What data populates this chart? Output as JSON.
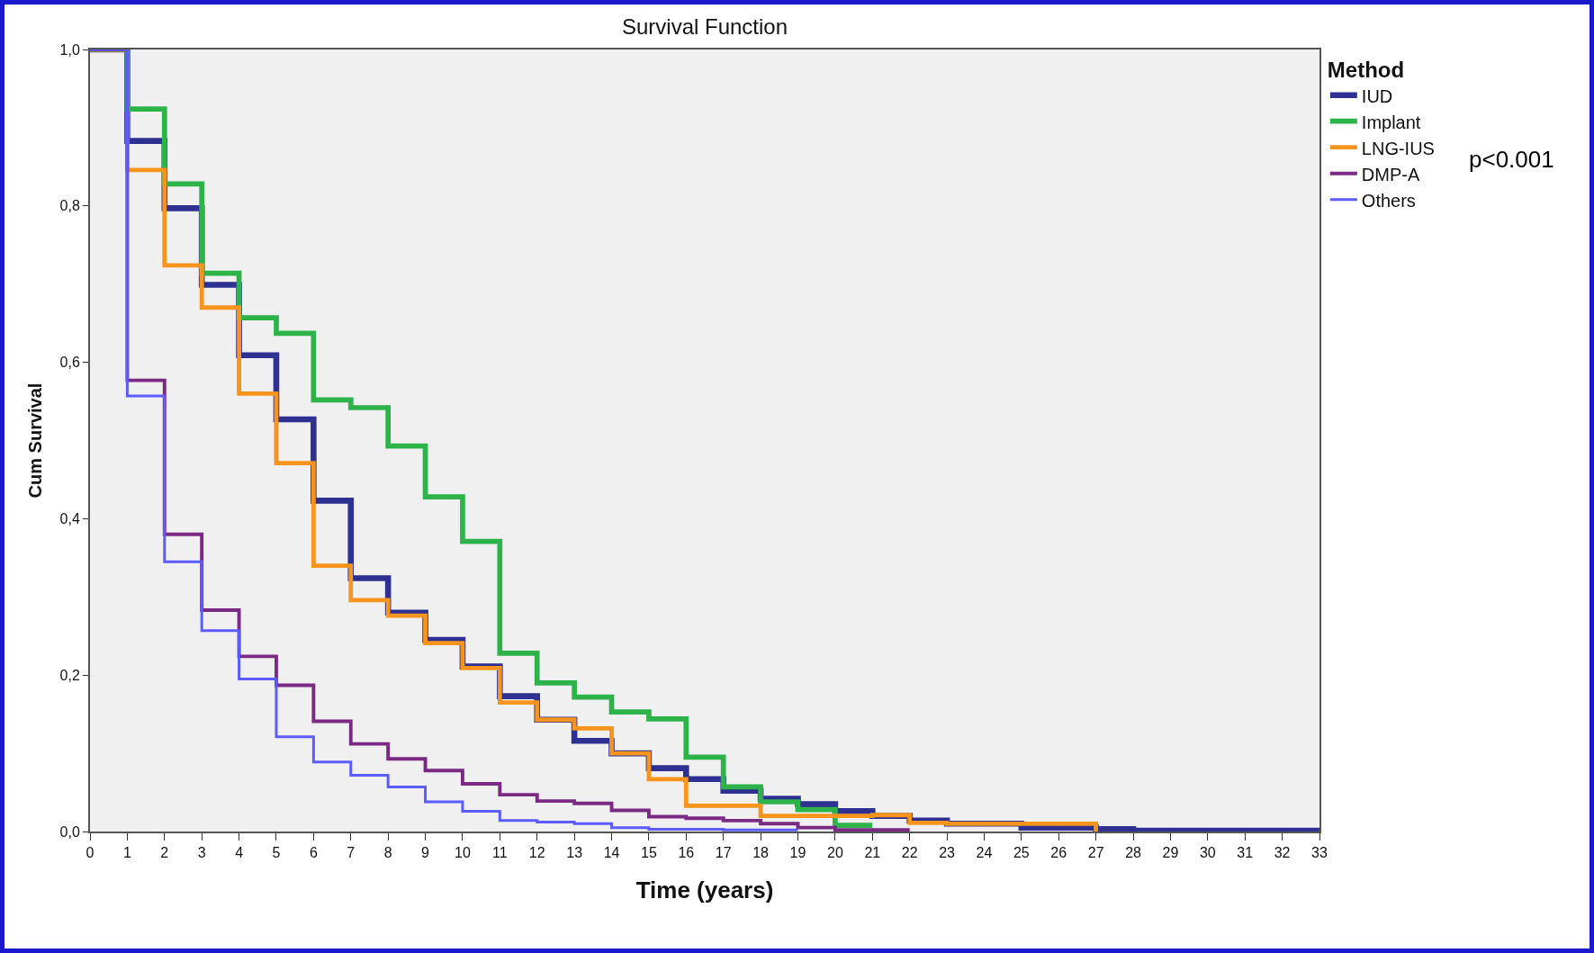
{
  "chart_data": {
    "type": "step",
    "title": "Survival Function",
    "xlabel": "Time (years)",
    "ylabel": "Cum Survival",
    "legend_title": "Method",
    "legend": "top right",
    "grid": false,
    "marker": "none",
    "line_style": "solid",
    "xlim": [
      0,
      33
    ],
    "xticks": [
      0,
      1,
      2,
      3,
      4,
      5,
      6,
      7,
      8,
      9,
      10,
      11,
      12,
      13,
      14,
      15,
      16,
      17,
      18,
      19,
      20,
      21,
      22,
      23,
      24,
      25,
      26,
      27,
      28,
      29,
      30,
      31,
      32,
      33
    ],
    "ylim": [
      0,
      1
    ],
    "yticks": [
      {
        "value": 0,
        "label": "0,0"
      },
      {
        "value": 0.2,
        "label": "0,2"
      },
      {
        "value": 0.4,
        "label": "0,4"
      },
      {
        "value": 0.6,
        "label": "0,6"
      },
      {
        "value": 0.8,
        "label": "0,8"
      },
      {
        "value": 1,
        "label": "1,0"
      }
    ],
    "annotations": [
      "p<0.001"
    ],
    "series": [
      {
        "name": "IUD",
        "color": "#2e3192",
        "x": [
          0,
          1,
          2,
          3,
          4,
          5,
          6,
          7,
          8,
          9,
          10,
          11,
          12,
          13,
          14,
          15,
          16,
          17,
          18,
          19,
          20,
          21,
          22,
          23,
          25,
          27,
          28,
          33
        ],
        "values": [
          1,
          0.883,
          0.797,
          0.699,
          0.609,
          0.527,
          0.423,
          0.324,
          0.28,
          0.245,
          0.211,
          0.173,
          0.143,
          0.116,
          0.1,
          0.081,
          0.067,
          0.052,
          0.042,
          0.035,
          0.026,
          0.02,
          0.014,
          0.01,
          0.005,
          0.003,
          0.001,
          0.001
        ]
      },
      {
        "name": "Implant",
        "color": "#2db34a",
        "x": [
          0,
          1,
          2,
          3,
          4,
          5,
          6,
          7,
          8,
          9,
          10,
          11,
          12,
          13,
          14,
          15,
          16,
          17,
          18,
          19,
          20,
          21
        ],
        "values": [
          1,
          0.924,
          0.828,
          0.714,
          0.657,
          0.637,
          0.552,
          0.542,
          0.493,
          0.428,
          0.371,
          0.228,
          0.19,
          0.172,
          0.153,
          0.144,
          0.095,
          0.057,
          0.038,
          0.028,
          0.008,
          0.008
        ]
      },
      {
        "name": "LNG-IUS",
        "color": "#f7941d",
        "x": [
          0,
          1,
          2,
          3,
          4,
          5,
          6,
          7,
          8,
          9,
          10,
          11,
          12,
          13,
          14,
          15,
          16,
          17,
          18,
          19,
          20,
          21,
          22,
          23,
          27
        ],
        "values": [
          1,
          0.846,
          0.724,
          0.67,
          0.56,
          0.471,
          0.34,
          0.296,
          0.276,
          0.241,
          0.209,
          0.165,
          0.143,
          0.132,
          0.1,
          0.067,
          0.033,
          0.033,
          0.02,
          0.02,
          0.02,
          0.021,
          0.011,
          0.01,
          0
        ]
      },
      {
        "name": "DMP-A",
        "color": "#7b2a84",
        "x": [
          0,
          1,
          2,
          3,
          4,
          5,
          6,
          7,
          8,
          9,
          10,
          11,
          12,
          13,
          14,
          15,
          16,
          17,
          18,
          19,
          20,
          22
        ],
        "values": [
          1,
          0.577,
          0.38,
          0.283,
          0.224,
          0.187,
          0.141,
          0.112,
          0.093,
          0.078,
          0.061,
          0.047,
          0.039,
          0.036,
          0.027,
          0.019,
          0.017,
          0.014,
          0.01,
          0.005,
          0.002,
          0.002
        ]
      },
      {
        "name": "Others",
        "color": "#5b5bff",
        "x": [
          0,
          1,
          2,
          3,
          4,
          5,
          6,
          7,
          8,
          9,
          10,
          11,
          12,
          13,
          14,
          15,
          17,
          19
        ],
        "values": [
          1,
          0.557,
          0.345,
          0.257,
          0.195,
          0.121,
          0.089,
          0.072,
          0.057,
          0.038,
          0.026,
          0.014,
          0.012,
          0.01,
          0.005,
          0.003,
          0.002,
          0.002
        ]
      }
    ]
  }
}
